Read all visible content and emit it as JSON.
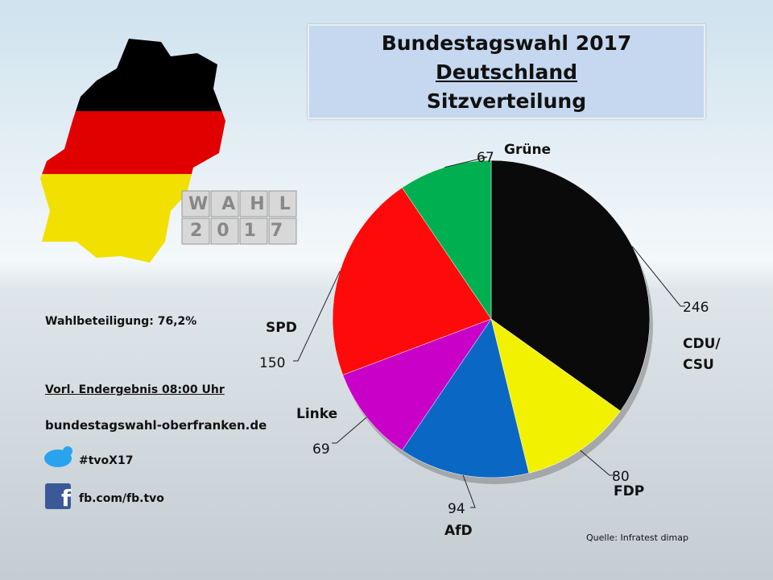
{
  "chart_data": {
    "type": "pie",
    "title": "Bundestagswahl 2017",
    "subtitle": "Deutschland",
    "heading": "Sitzverteilung",
    "categories": [
      "CDU/ CSU",
      "FDP",
      "AfD",
      "Linke",
      "SPD",
      "Grüne"
    ],
    "values": [
      246,
      80,
      94,
      69,
      150,
      67
    ],
    "colors": [
      "#0a0a0a",
      "#f2f200",
      "#0a68c4",
      "#c800c8",
      "#ff0a0a",
      "#00b050"
    ],
    "source": "Quelle: Infratest dimap"
  },
  "info": {
    "turnout": "Wahlbeteiligung: 76,2%",
    "status": "Vorl. Endergebnis 08:00 Uhr",
    "website": "bundestagswahl-oberfranken.de",
    "hashtag": "#tvoX17",
    "facebook": "fb.com/fb.tvo",
    "logo_word": "WAHL",
    "logo_year": "2017"
  }
}
